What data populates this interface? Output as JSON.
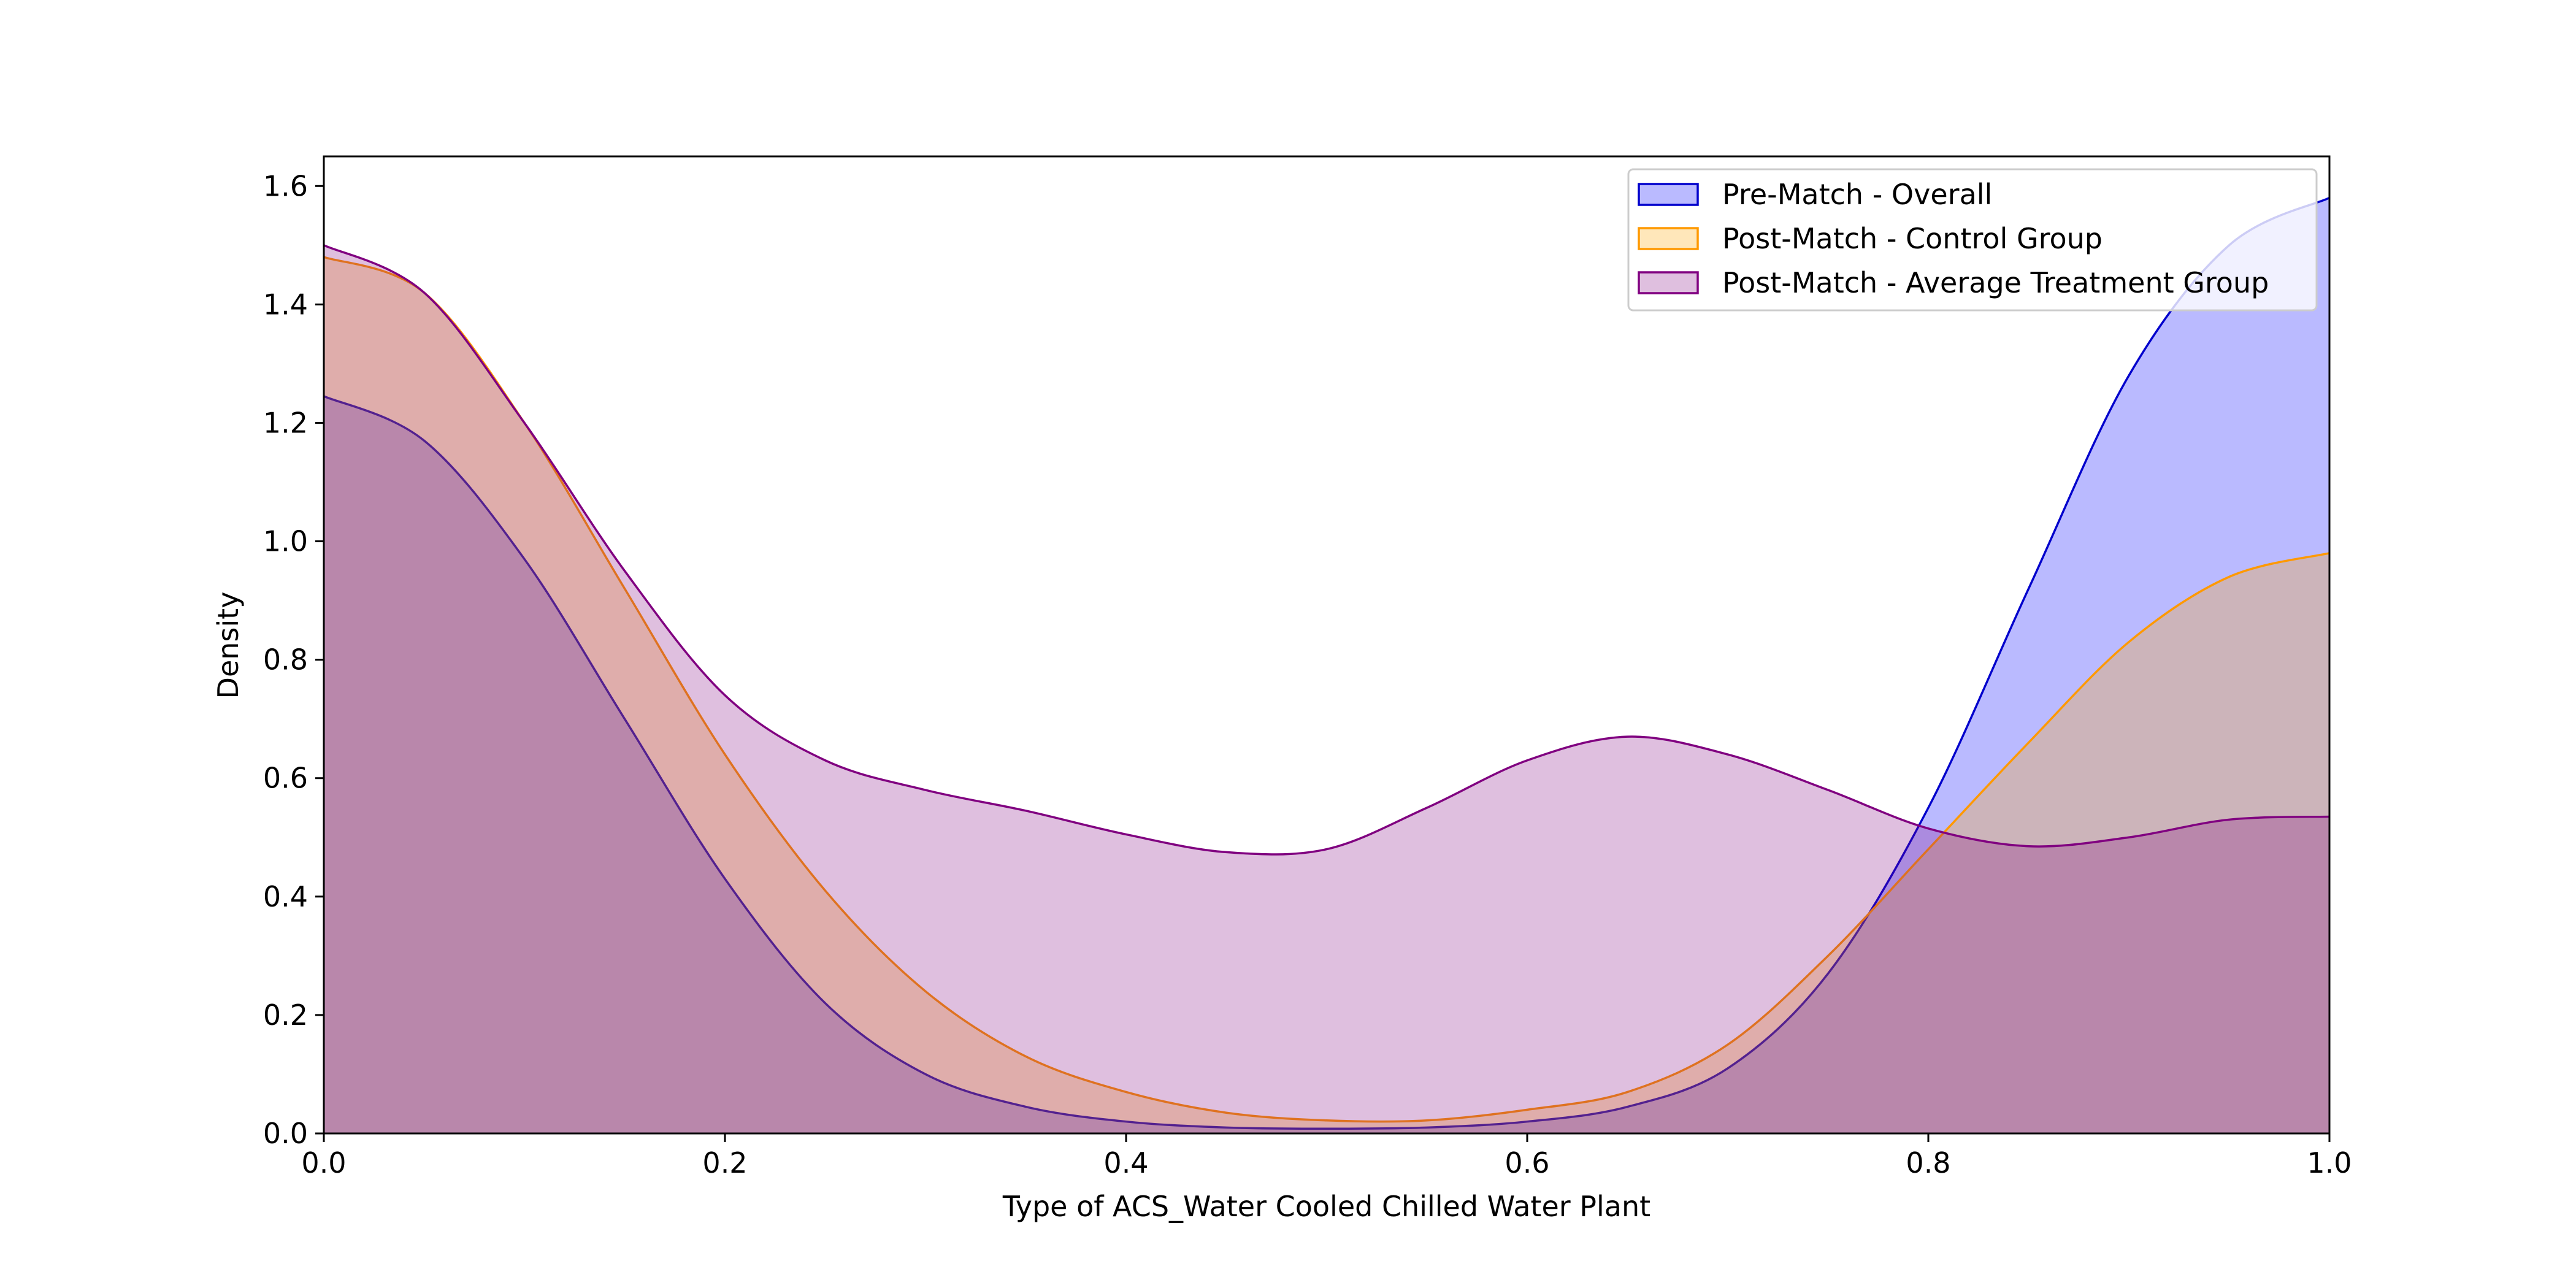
{
  "chart_data": {
    "type": "area",
    "title": "",
    "xlabel": "Type of ACS_Water Cooled Chilled Water Plant",
    "ylabel": "Density",
    "xlim": [
      0.0,
      1.0
    ],
    "ylim": [
      0.0,
      1.65
    ],
    "x_ticks": [
      "0.0",
      "0.2",
      "0.4",
      "0.6",
      "0.8",
      "1.0"
    ],
    "y_ticks": [
      "0.0",
      "0.2",
      "0.4",
      "0.6",
      "0.8",
      "1.0",
      "1.2",
      "1.4",
      "1.6"
    ],
    "grid": false,
    "legend_position": "top-right",
    "x": [
      0.0,
      0.05,
      0.1,
      0.15,
      0.2,
      0.25,
      0.3,
      0.35,
      0.4,
      0.45,
      0.5,
      0.55,
      0.6,
      0.65,
      0.7,
      0.75,
      0.8,
      0.85,
      0.9,
      0.95,
      1.0
    ],
    "series": [
      {
        "name": "Pre-Match - Overall",
        "color": "#0000cc",
        "fill": "#0000ff",
        "fill_opacity": 0.27,
        "values": [
          1.245,
          1.17,
          0.97,
          0.7,
          0.43,
          0.22,
          0.1,
          0.045,
          0.02,
          0.01,
          0.008,
          0.01,
          0.02,
          0.045,
          0.11,
          0.27,
          0.55,
          0.92,
          1.28,
          1.5,
          1.58
        ]
      },
      {
        "name": "Post-Match - Control Group",
        "color": "#ff9900",
        "fill": "#ffa500",
        "fill_opacity": 0.27,
        "values": [
          1.48,
          1.42,
          1.2,
          0.92,
          0.64,
          0.41,
          0.24,
          0.13,
          0.07,
          0.035,
          0.022,
          0.022,
          0.04,
          0.07,
          0.15,
          0.3,
          0.48,
          0.66,
          0.83,
          0.94,
          0.98
        ]
      },
      {
        "name": "Post-Match - Average Treatment Group",
        "color": "#800080",
        "fill": "#800080",
        "fill_opacity": 0.25,
        "values": [
          1.5,
          1.42,
          1.2,
          0.95,
          0.74,
          0.63,
          0.58,
          0.545,
          0.505,
          0.475,
          0.48,
          0.55,
          0.63,
          0.67,
          0.64,
          0.58,
          0.515,
          0.485,
          0.5,
          0.53,
          0.535
        ]
      }
    ]
  }
}
